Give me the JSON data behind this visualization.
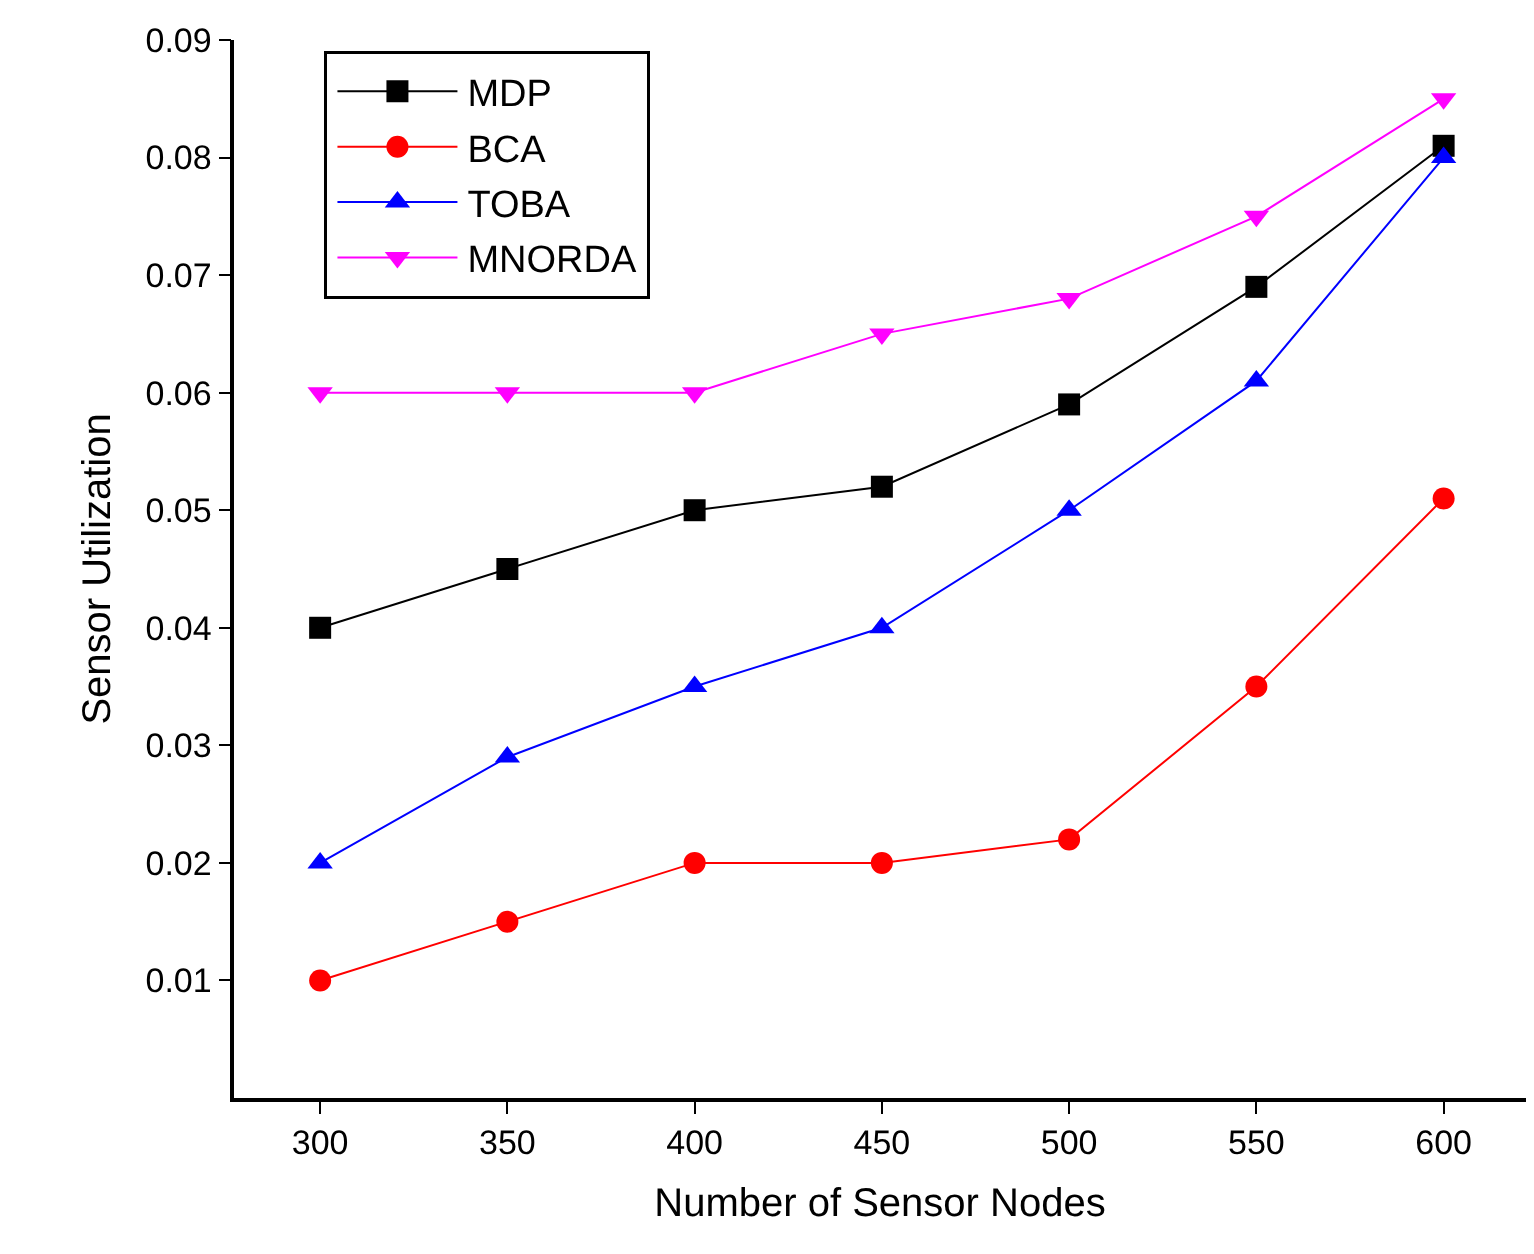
{
  "chart_data": {
    "type": "line",
    "xlabel": "Number of Sensor Nodes",
    "ylabel": "Sensor Utilization",
    "x": [
      300,
      350,
      400,
      450,
      500,
      550,
      600
    ],
    "xlim": [
      277,
      622
    ],
    "xticks": [
      300,
      350,
      400,
      450,
      500,
      550,
      600
    ],
    "ylim": [
      0,
      0.09
    ],
    "yticks": [
      0.01,
      0.02,
      0.03,
      0.04,
      0.05,
      0.06,
      0.07,
      0.08,
      0.09
    ],
    "grid": false,
    "legend": "top left",
    "line_style": "solid",
    "series": [
      {
        "name": "MDP",
        "color": "#000000",
        "marker": "square",
        "values": [
          0.04,
          0.045,
          0.05,
          0.052,
          0.059,
          0.069,
          0.081
        ]
      },
      {
        "name": "BCA",
        "color": "#ff0000",
        "marker": "circle",
        "values": [
          0.01,
          0.015,
          0.02,
          0.02,
          0.022,
          0.035,
          0.051
        ]
      },
      {
        "name": "TOBA",
        "color": "#0000ff",
        "marker": "triangle",
        "values": [
          0.02,
          0.029,
          0.035,
          0.04,
          0.05,
          0.061,
          0.08
        ]
      },
      {
        "name": "MNORDA",
        "color": "#ff00ff",
        "marker": "triangle-down",
        "values": [
          0.06,
          0.06,
          0.06,
          0.065,
          0.068,
          0.075,
          0.085
        ]
      }
    ]
  }
}
